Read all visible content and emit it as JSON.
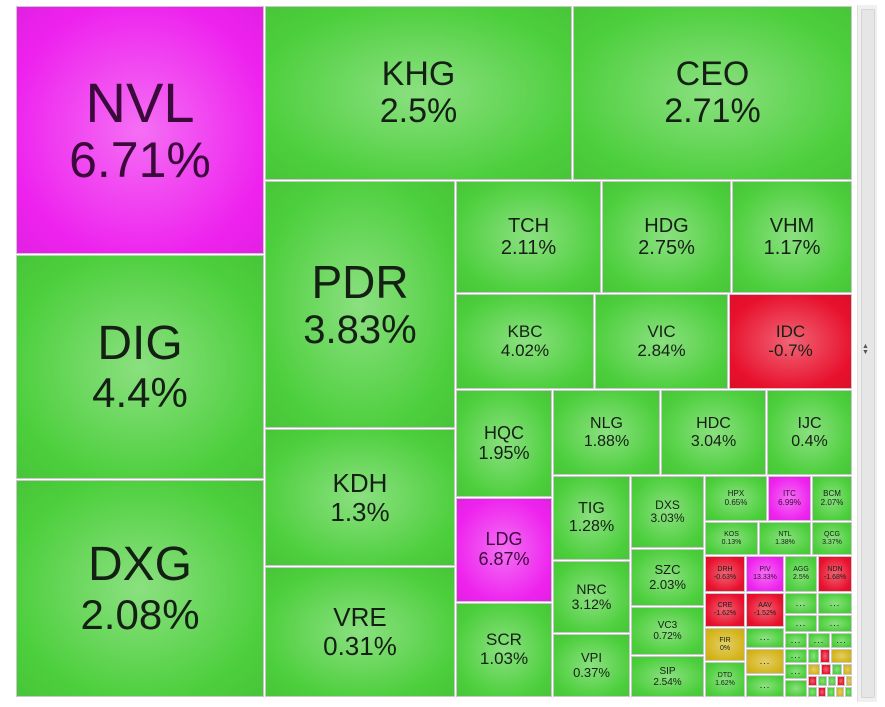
{
  "colors": {
    "up": "#4ccf3c",
    "ceiling": "#ee22ee",
    "down": "#e8102c",
    "flat": "#d4b418"
  },
  "chart_data": {
    "type": "treemap",
    "items": [
      {
        "symbol": "NVL",
        "change": "6.71%",
        "status": "ceiling"
      },
      {
        "symbol": "KHG",
        "change": "2.5%",
        "status": "up"
      },
      {
        "symbol": "CEO",
        "change": "2.71%",
        "status": "up"
      },
      {
        "symbol": "DIG",
        "change": "4.4%",
        "status": "up"
      },
      {
        "symbol": "DXG",
        "change": "2.08%",
        "status": "up"
      },
      {
        "symbol": "PDR",
        "change": "3.83%",
        "status": "up"
      },
      {
        "symbol": "KDH",
        "change": "1.3%",
        "status": "up"
      },
      {
        "symbol": "VRE",
        "change": "0.31%",
        "status": "up"
      },
      {
        "symbol": "TCH",
        "change": "2.11%",
        "status": "up"
      },
      {
        "symbol": "HDG",
        "change": "2.75%",
        "status": "up"
      },
      {
        "symbol": "VHM",
        "change": "1.17%",
        "status": "up"
      },
      {
        "symbol": "KBC",
        "change": "4.02%",
        "status": "up"
      },
      {
        "symbol": "VIC",
        "change": "2.84%",
        "status": "up"
      },
      {
        "symbol": "IDC",
        "change": "-0.7%",
        "status": "down"
      },
      {
        "symbol": "HQC",
        "change": "1.95%",
        "status": "up"
      },
      {
        "symbol": "NLG",
        "change": "1.88%",
        "status": "up"
      },
      {
        "symbol": "HDC",
        "change": "3.04%",
        "status": "up"
      },
      {
        "symbol": "IJC",
        "change": "0.4%",
        "status": "up"
      },
      {
        "symbol": "LDG",
        "change": "6.87%",
        "status": "ceiling"
      },
      {
        "symbol": "TIG",
        "change": "1.28%",
        "status": "up"
      },
      {
        "symbol": "DXS",
        "change": "3.03%",
        "status": "up"
      },
      {
        "symbol": "HPX",
        "change": "0.65%",
        "status": "up"
      },
      {
        "symbol": "ITC",
        "change": "6.99%",
        "status": "ceiling"
      },
      {
        "symbol": "BCM",
        "change": "2.07%",
        "status": "up"
      },
      {
        "symbol": "KOS",
        "change": "0.13%",
        "status": "up"
      },
      {
        "symbol": "NTL",
        "change": "1.38%",
        "status": "up"
      },
      {
        "symbol": "QCG",
        "change": "3.37%",
        "status": "up"
      },
      {
        "symbol": "SZC",
        "change": "2.03%",
        "status": "up"
      },
      {
        "symbol": "DRH",
        "change": "-0.63%",
        "status": "down"
      },
      {
        "symbol": "PIV",
        "change": "13.33%",
        "status": "ceiling"
      },
      {
        "symbol": "AGG",
        "change": "2.5%",
        "status": "up"
      },
      {
        "symbol": "NDN",
        "change": "-1.68%",
        "status": "down"
      },
      {
        "symbol": "NRC",
        "change": "3.12%",
        "status": "up"
      },
      {
        "symbol": "CRE",
        "change": "-1.62%",
        "status": "down"
      },
      {
        "symbol": "AAV",
        "change": "-1.52%",
        "status": "down"
      },
      {
        "symbol": "SCR",
        "change": "1.03%",
        "status": "up"
      },
      {
        "symbol": "VC3",
        "change": "0.72%",
        "status": "up"
      },
      {
        "symbol": "FIR",
        "change": "0%",
        "status": "flat"
      },
      {
        "symbol": "VPI",
        "change": "0.37%",
        "status": "up"
      },
      {
        "symbol": "SIP",
        "change": "2.54%",
        "status": "up"
      },
      {
        "symbol": "DTD",
        "change": "1.62%",
        "status": "up"
      }
    ],
    "unlabeled": [
      {
        "status": "up",
        "label": "..."
      },
      {
        "status": "up",
        "label": "..."
      },
      {
        "status": "up",
        "label": "..."
      },
      {
        "status": "up",
        "label": "..."
      },
      {
        "status": "up",
        "label": "..."
      },
      {
        "status": "flat",
        "label": "..."
      },
      {
        "status": "up",
        "label": "..."
      },
      {
        "status": "up",
        "label": "..."
      },
      {
        "status": "up",
        "label": "..."
      },
      {
        "status": "up",
        "label": "..."
      },
      {
        "status": "up",
        "label": "..."
      },
      {
        "status": "up",
        "label": "..."
      },
      {
        "status": "flat",
        "label": ""
      },
      {
        "status": "up",
        "label": ""
      },
      {
        "status": "down",
        "label": ""
      },
      {
        "status": "up",
        "label": ""
      },
      {
        "status": "flat",
        "label": ""
      },
      {
        "status": "down",
        "label": ""
      },
      {
        "status": "up",
        "label": ""
      },
      {
        "status": "flat",
        "label": ""
      },
      {
        "status": "down",
        "label": ""
      },
      {
        "status": "up",
        "label": ""
      },
      {
        "status": "up",
        "label": ""
      },
      {
        "status": "down",
        "label": ""
      },
      {
        "status": "flat",
        "label": ""
      },
      {
        "status": "up",
        "label": ""
      },
      {
        "status": "down",
        "label": ""
      },
      {
        "status": "up",
        "label": ""
      },
      {
        "status": "flat",
        "label": ""
      },
      {
        "status": "up",
        "label": ""
      }
    ]
  }
}
